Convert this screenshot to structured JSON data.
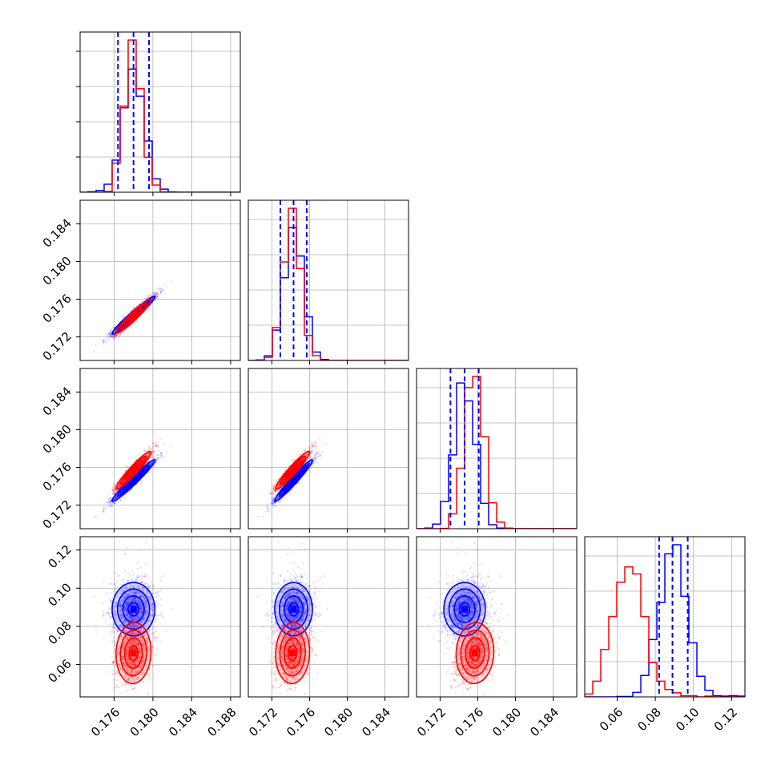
{
  "chart_data": {
    "type": "corner",
    "grid": true,
    "colors": {
      "blue": "#0000ff",
      "red": "#ff0000",
      "grid": "#b0b0b0"
    },
    "parameters": [
      {
        "range": [
          0.1725,
          0.189
        ],
        "ticks": [
          "0.176",
          "0.180",
          "0.184",
          "0.188"
        ],
        "tick_values": [
          0.176,
          0.18,
          0.184,
          0.188
        ]
      },
      {
        "range": [
          0.1695,
          0.1865
        ],
        "ticks": [
          "0.172",
          "0.176",
          "0.180",
          "0.184"
        ],
        "tick_values": [
          0.172,
          0.176,
          0.18,
          0.184
        ]
      },
      {
        "range": [
          0.1695,
          0.1865
        ],
        "ticks": [
          "0.172",
          "0.176",
          "0.180",
          "0.184"
        ],
        "tick_values": [
          0.172,
          0.176,
          0.18,
          0.184
        ]
      },
      {
        "range": [
          0.043,
          0.127
        ],
        "ticks": [
          "0.06",
          "0.08",
          "0.10",
          "0.12"
        ],
        "tick_values": [
          0.06,
          0.08,
          0.1,
          0.12
        ]
      }
    ],
    "series": [
      {
        "color": "blue",
        "means": [
          0.178,
          0.1743,
          0.1746,
          0.089
        ],
        "sds": [
          0.0011,
          0.001,
          0.0011,
          0.007
        ],
        "quantiles": [
          [
            0.1764,
            0.178,
            0.1796
          ],
          [
            0.1729,
            0.1743,
            0.1757
          ],
          [
            0.1731,
            0.1746,
            0.1761
          ],
          [
            0.082,
            0.089,
            0.097
          ]
        ],
        "corr": [
          [
            1,
            0.97,
            0.97,
            0.0
          ],
          [
            0.97,
            1,
            0.97,
            0.0
          ],
          [
            0.97,
            0.97,
            1,
            0.0
          ],
          [
            0.0,
            0.0,
            0.0,
            1
          ]
        ]
      },
      {
        "color": "red",
        "means": [
          0.178,
          0.1742,
          0.1757,
          0.066
        ],
        "sds": [
          0.0009,
          0.0009,
          0.001,
          0.008
        ],
        "corr": [
          [
            1,
            0.95,
            0.95,
            0.05
          ],
          [
            0.95,
            1,
            0.95,
            0.05
          ],
          [
            0.95,
            0.95,
            1,
            0.05
          ],
          [
            0.05,
            0.05,
            0.05,
            1
          ]
        ]
      }
    ]
  }
}
